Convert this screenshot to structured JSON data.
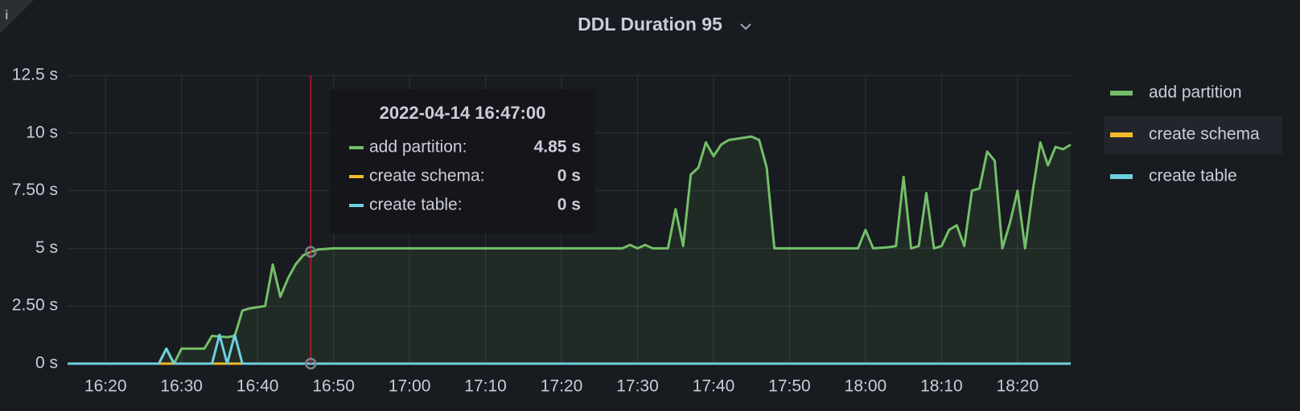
{
  "panel_info": "i",
  "chart_data": {
    "type": "line",
    "title": "DDL Duration 95",
    "xlim": [
      "16:15",
      "18:27"
    ],
    "xticks": [
      "16:20",
      "16:30",
      "16:40",
      "16:50",
      "17:00",
      "17:10",
      "17:20",
      "17:30",
      "17:40",
      "17:50",
      "18:00",
      "18:10",
      "18:20"
    ],
    "ylim": [
      0,
      12.5
    ],
    "yticks": [
      {
        "value": 0,
        "label": "0 s"
      },
      {
        "value": 2.5,
        "label": "2.50 s"
      },
      {
        "value": 5,
        "label": "5 s"
      },
      {
        "value": 7.5,
        "label": "7.50 s"
      },
      {
        "value": 10,
        "label": "10 s"
      },
      {
        "value": 12.5,
        "label": "12.5 s"
      }
    ],
    "grid": true,
    "legend": "right",
    "series": [
      {
        "name": "add partition",
        "color": "#73bf69",
        "fill": true,
        "x": [
          "16:15",
          "16:27",
          "16:28",
          "16:29",
          "16:30",
          "16:33",
          "16:34",
          "16:36",
          "16:37",
          "16:38",
          "16:39",
          "16:41",
          "16:42",
          "16:43",
          "16:44",
          "16:45",
          "16:46",
          "16:47",
          "16:48",
          "16:50",
          "17:28",
          "17:29",
          "17:30",
          "17:31",
          "17:32",
          "17:34",
          "17:35",
          "17:36",
          "17:37",
          "17:38",
          "17:39",
          "17:40",
          "17:41",
          "17:42",
          "17:43",
          "17:44",
          "17:45",
          "17:46",
          "17:47",
          "17:48",
          "17:59",
          "18:00",
          "18:01",
          "18:03",
          "18:04",
          "18:05",
          "18:06",
          "18:07",
          "18:08",
          "18:09",
          "18:10",
          "18:11",
          "18:12",
          "18:13",
          "18:14",
          "18:15",
          "18:16",
          "18:17",
          "18:18",
          "18:19",
          "18:20",
          "18:21",
          "18:22",
          "18:23",
          "18:24",
          "18:25",
          "18:26",
          "18:27"
        ],
        "values": [
          0,
          0,
          0.65,
          0,
          0.65,
          0.65,
          1.2,
          1.15,
          1.2,
          2.3,
          2.4,
          2.5,
          4.3,
          2.9,
          3.7,
          4.3,
          4.7,
          4.85,
          4.95,
          5,
          5,
          5.15,
          5,
          5.15,
          5,
          5,
          6.7,
          5.1,
          8.2,
          8.5,
          9.6,
          9.0,
          9.5,
          9.7,
          9.75,
          9.8,
          9.85,
          9.7,
          8.5,
          5,
          5,
          5.8,
          5,
          5.05,
          5.1,
          8.1,
          5,
          5.1,
          7.4,
          5,
          5.1,
          5.8,
          6.0,
          5.1,
          7.5,
          7.6,
          9.2,
          8.8,
          5,
          6.1,
          7.5,
          5,
          7.5,
          9.6,
          8.6,
          9.4,
          9.3,
          9.5
        ]
      },
      {
        "name": "create schema",
        "color": "#f2b92b",
        "x": [
          "16:15",
          "18:27"
        ],
        "values": [
          0,
          0
        ]
      },
      {
        "name": "create table",
        "color": "#6ed0e0",
        "x": [
          "16:15",
          "16:27",
          "16:28",
          "16:29",
          "16:34",
          "16:35",
          "16:36",
          "16:37",
          "16:38",
          "18:27"
        ],
        "values": [
          0,
          0,
          0.65,
          0,
          0,
          1.25,
          0,
          1.25,
          0,
          0
        ]
      }
    ],
    "tooltip": {
      "time": "2022-04-14 16:47:00",
      "x": "16:47",
      "items": [
        {
          "label": "add partition:",
          "value": 4.85,
          "value_label": "4.85 s"
        },
        {
          "label": "create schema:",
          "value": 0,
          "value_label": "0 s"
        },
        {
          "label": "create table:",
          "value": 0,
          "value_label": "0 s"
        }
      ]
    }
  }
}
